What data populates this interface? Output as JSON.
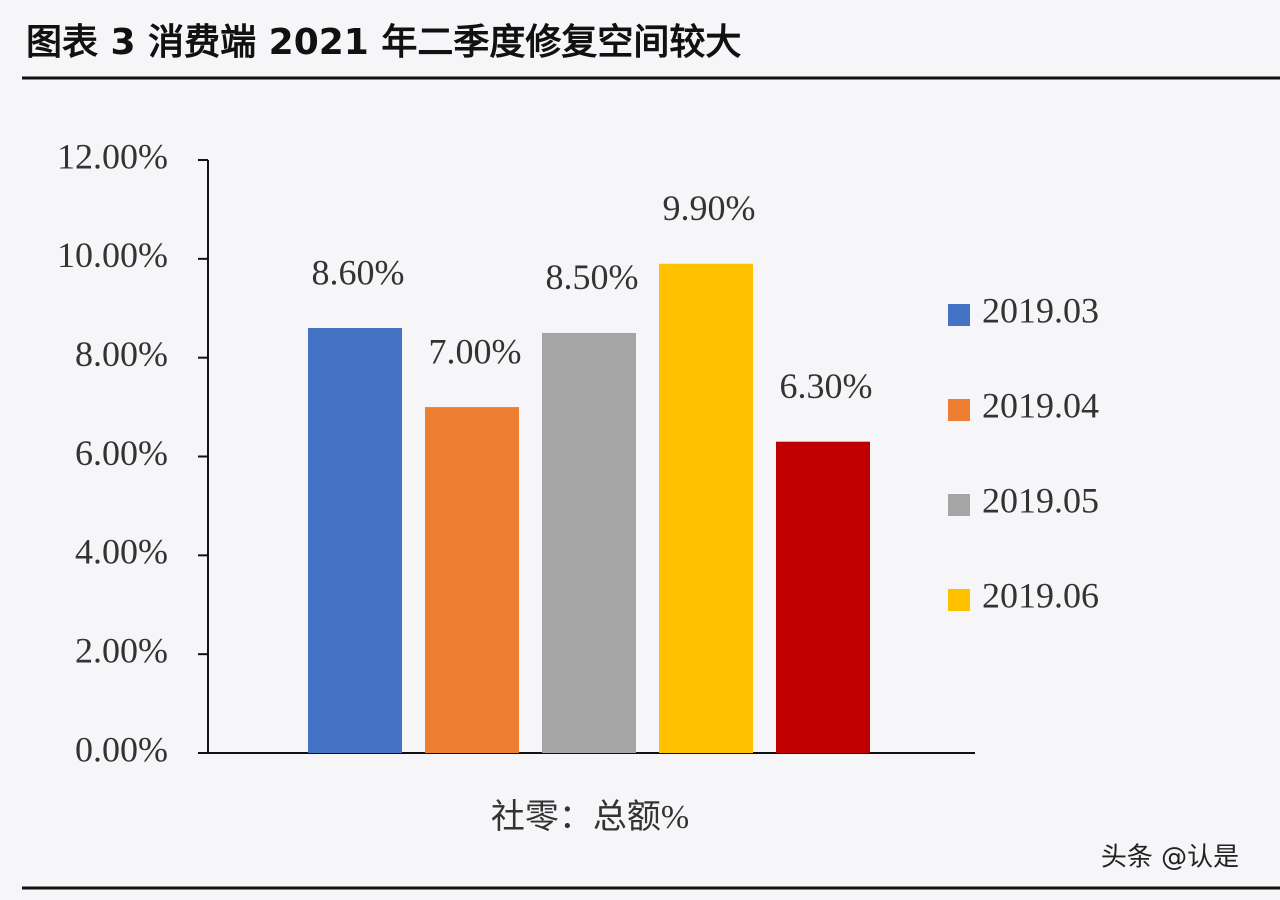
{
  "chart_data": {
    "type": "bar",
    "title": "图表 3 消费端 2021 年二季度修复空间较大",
    "x_label": "社零：总额%",
    "watermark": "头条 @认是",
    "ylim": [
      0,
      12
    ],
    "yticks": [
      {
        "value": 0,
        "label": "0.00%"
      },
      {
        "value": 2,
        "label": "2.00%"
      },
      {
        "value": 4,
        "label": "4.00%"
      },
      {
        "value": 6,
        "label": "6.00%"
      },
      {
        "value": 8,
        "label": "8.00%"
      },
      {
        "value": 10,
        "label": "10.00%"
      },
      {
        "value": 12,
        "label": "12.00%"
      }
    ],
    "series": [
      {
        "name": "2019.03",
        "color": "#4472c4",
        "values": [
          8.6
        ],
        "value_labels": [
          "8.60%"
        ]
      },
      {
        "name": "2019.04",
        "color": "#ed7d31",
        "values": [
          7.0
        ],
        "value_labels": [
          "7.00%"
        ]
      },
      {
        "name": "2019.05",
        "color": "#a5a5a5",
        "values": [
          8.5
        ],
        "value_labels": [
          "8.50%"
        ]
      },
      {
        "name": "2019.06",
        "color": "#ffc000",
        "values": [
          9.9
        ],
        "value_labels": [
          "9.90%"
        ]
      },
      {
        "name": null,
        "color": "#c00000",
        "values": [
          6.3
        ],
        "value_labels": [
          "6.30%"
        ]
      }
    ],
    "legend": "right"
  }
}
